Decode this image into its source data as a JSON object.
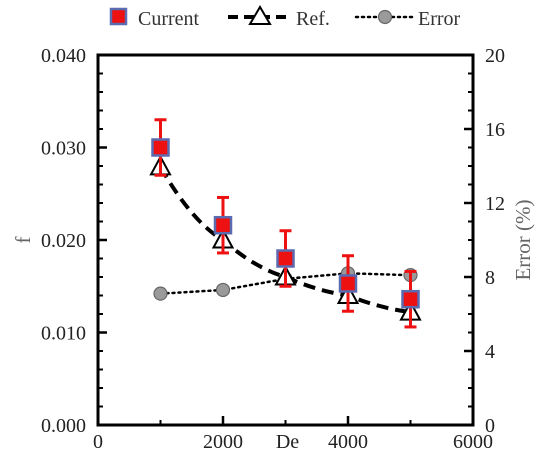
{
  "chart_data": {
    "type": "line",
    "title": "",
    "xlabel": "De",
    "ylabel": "f",
    "y2label": "Error (%)",
    "xlim": [
      0,
      6000
    ],
    "ylim": [
      0.0,
      0.04
    ],
    "y2lim": [
      0,
      20
    ],
    "x_ticks": [
      0,
      2000,
      4000,
      6000
    ],
    "y_ticks": [
      0.0,
      0.01,
      0.02,
      0.03,
      0.04
    ],
    "y2_ticks": [
      0,
      4,
      8,
      12,
      16,
      20
    ],
    "x_tick_labels": [
      "0",
      "2000",
      "4000",
      "6000"
    ],
    "y_tick_labels": [
      "0.000",
      "0.010",
      "0.020",
      "0.030",
      "0.040"
    ],
    "y2_tick_labels": [
      "0",
      "4",
      "8",
      "12",
      "16",
      "20"
    ],
    "grid": false,
    "legend_position": "top",
    "x": [
      1000,
      2000,
      3000,
      4000,
      5000
    ],
    "series": [
      {
        "name": "Current",
        "axis": "left",
        "values": [
          0.03,
          0.0216,
          0.018,
          0.0153,
          0.0136
        ],
        "error_plus": [
          0.003,
          0.003,
          0.003,
          0.003,
          0.003
        ],
        "error_minus": [
          0.003,
          0.003,
          0.003,
          0.003,
          0.003
        ],
        "marker": "square",
        "color": "#ee1111",
        "edge_color": "#5b6bb0"
      },
      {
        "name": "Ref.",
        "axis": "left",
        "values": [
          0.0279,
          0.02,
          0.016,
          0.014,
          0.0122
        ],
        "marker": "triangle",
        "line_style": "dashed",
        "color": "#000000"
      },
      {
        "name": "Error",
        "axis": "right",
        "values": [
          7.1,
          7.3,
          7.9,
          8.2,
          8.1
        ],
        "marker": "circle",
        "line_style": "dotted",
        "color": "#888888"
      }
    ]
  }
}
